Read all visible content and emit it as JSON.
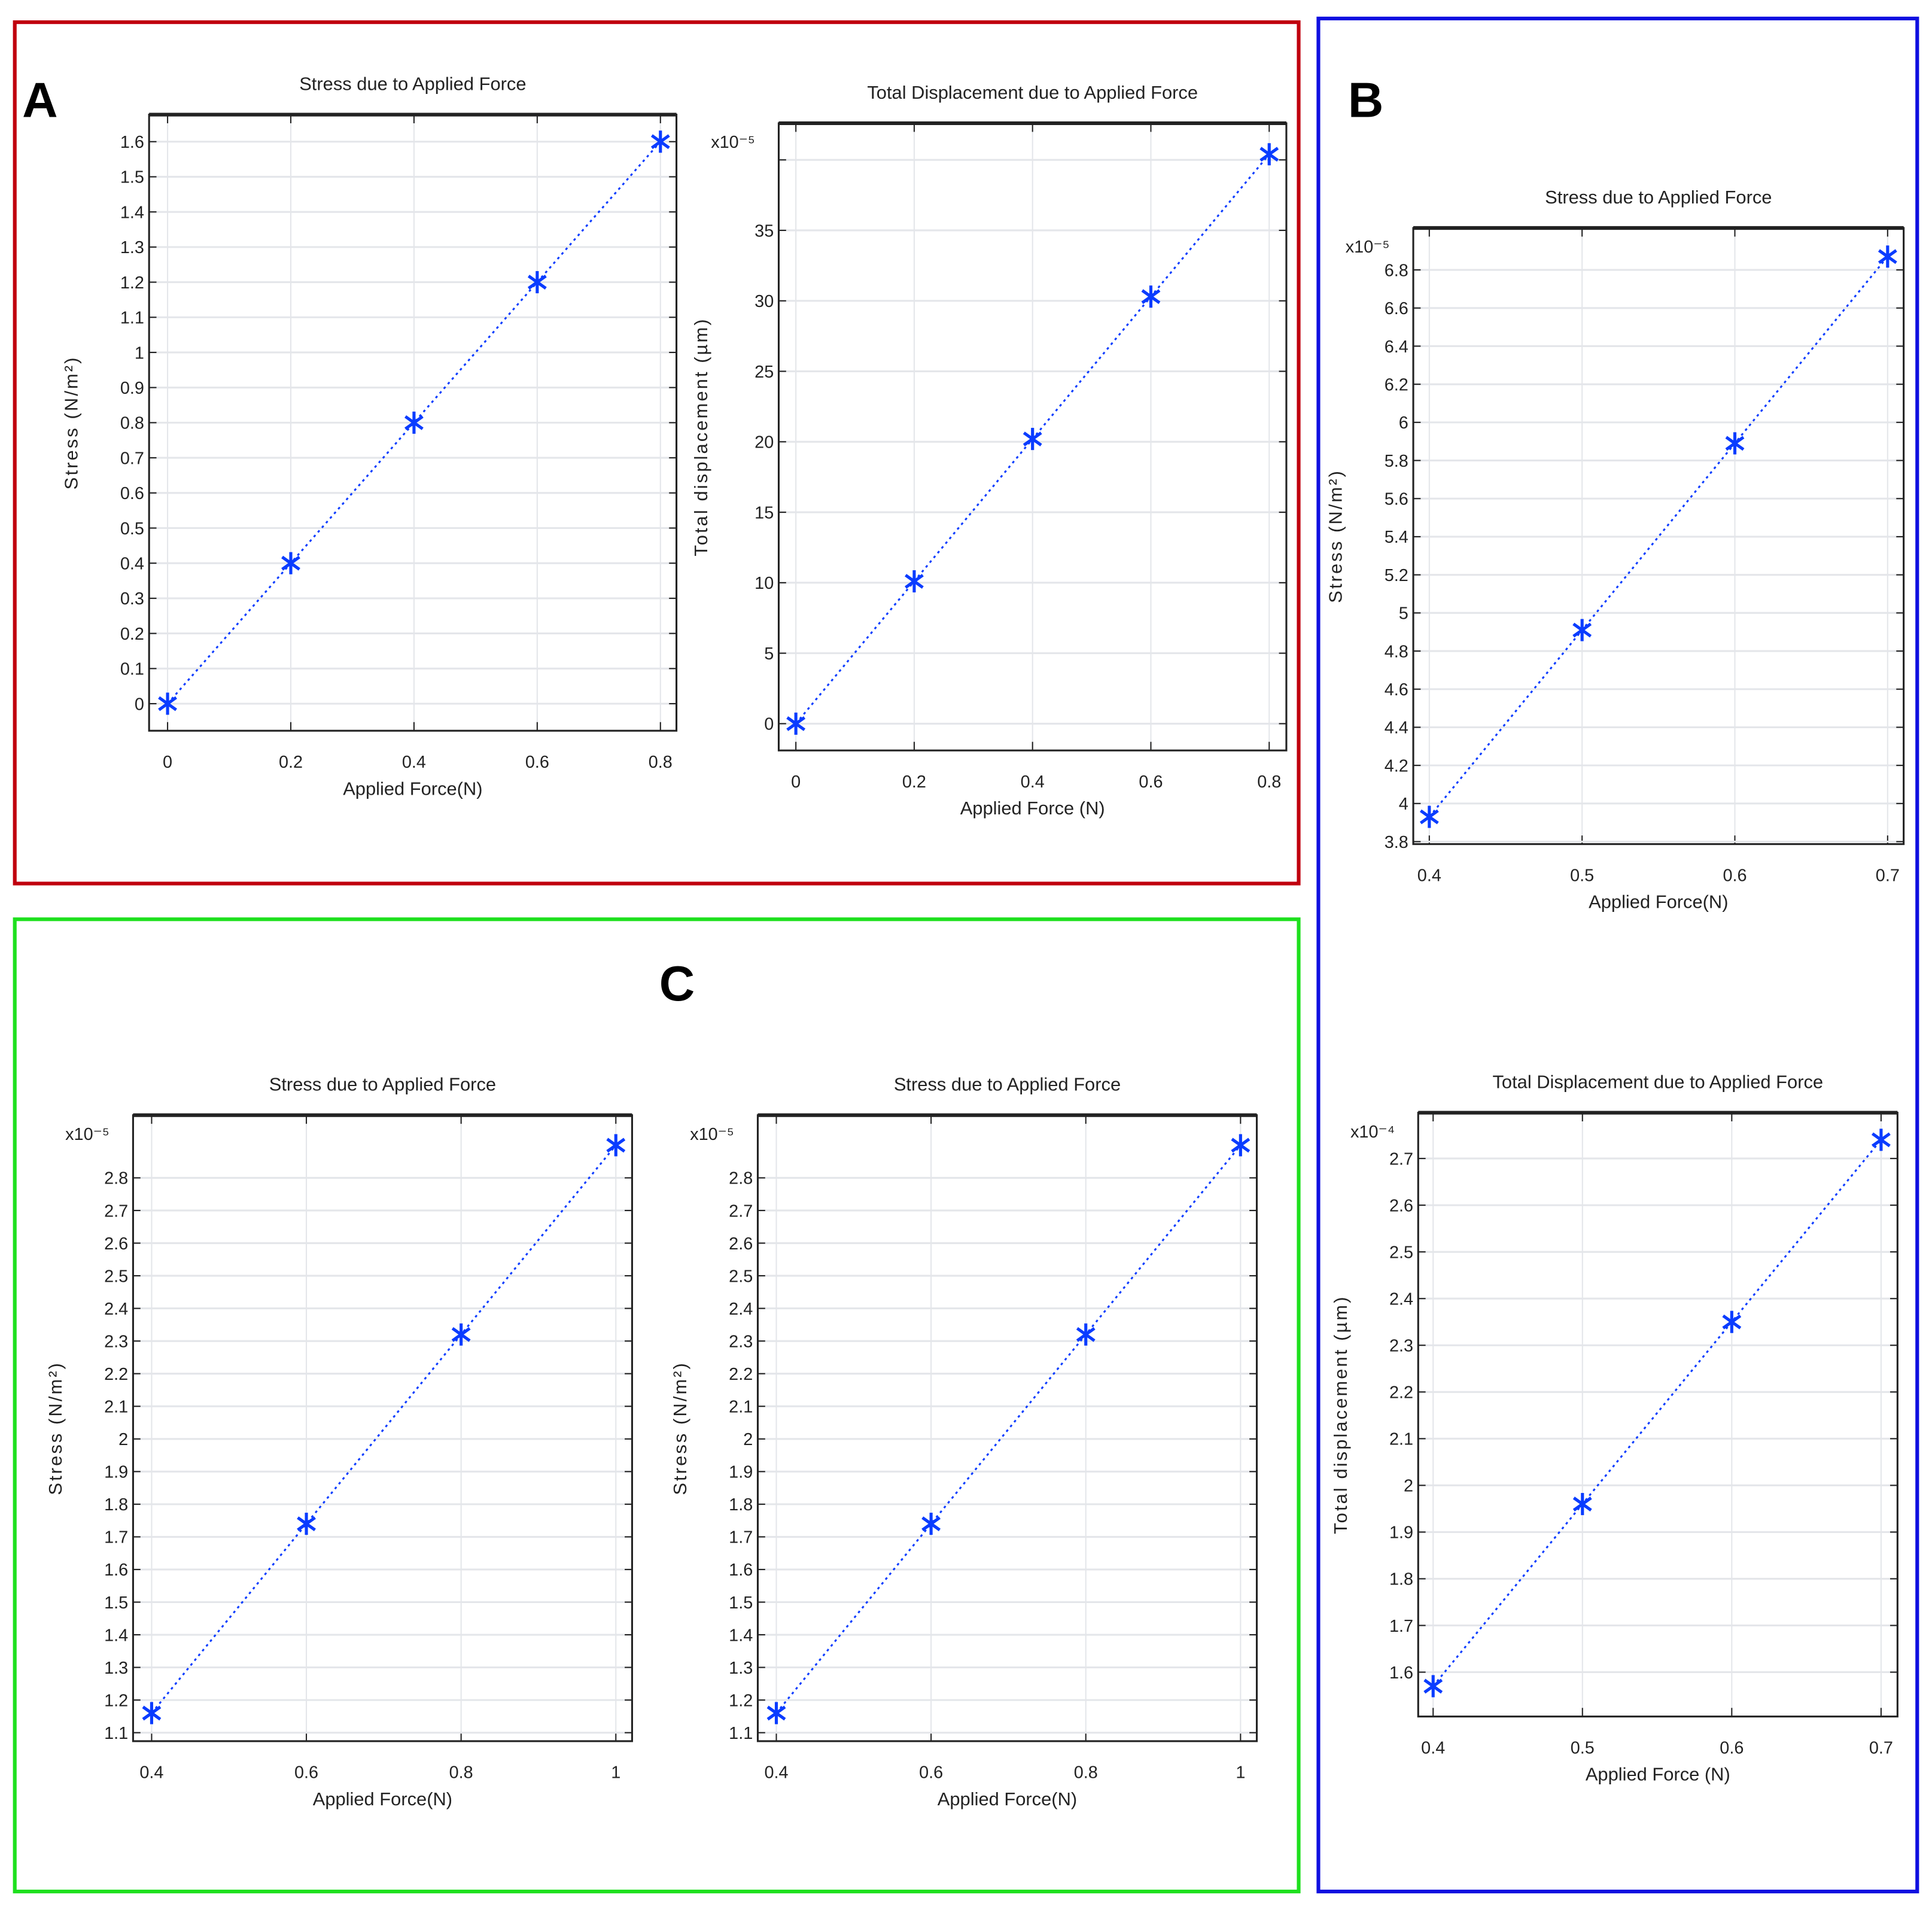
{
  "panels": [
    {
      "letter": "A",
      "color": "#c0000e"
    },
    {
      "letter": "B",
      "color": "#1010e0"
    },
    {
      "letter": "C",
      "color": "#1ee01e"
    }
  ],
  "colors": {
    "series": "#0a3cff",
    "grid": "#e4e6ea",
    "axis": "#222222"
  },
  "chart_data": [
    {
      "panel": "A",
      "type": "line",
      "marker": "asterisk",
      "linestyle": "dotted",
      "title": "Stress due to Applied Force",
      "xlabel": "Applied Force(N)",
      "ylabel": "Stress (N/m²)",
      "multiplier": "",
      "x": [
        0,
        0.2,
        0.4,
        0.6,
        0.8
      ],
      "y": [
        0,
        0.4,
        0.8,
        1.2,
        1.6
      ],
      "xlim": [
        -0.03,
        0.826
      ],
      "ylim": [
        -0.077,
        1.677
      ],
      "xticks": [
        0,
        0.2,
        0.4,
        0.6,
        0.8
      ],
      "xtick_labels": [
        "0",
        "0.2",
        "0.4",
        "0.6",
        "0.8"
      ],
      "yticks": [
        0,
        0.1,
        0.2,
        0.3,
        0.4,
        0.5,
        0.6,
        0.7,
        0.8,
        0.9,
        1,
        1.1,
        1.2,
        1.3,
        1.4,
        1.5,
        1.6
      ],
      "ytick_labels": [
        "0",
        "0.1",
        "0.2",
        "0.3",
        "0.4",
        "0.5",
        "0.6",
        "0.7",
        "0.8",
        "0.9",
        "1",
        "1.1",
        "1.2",
        "1.3",
        "1.4",
        "1.5",
        "1.6"
      ],
      "grid": true
    },
    {
      "panel": "A",
      "type": "line",
      "marker": "asterisk",
      "linestyle": "dotted",
      "title": "Total Displacement due to Applied Force",
      "xlabel": "Applied Force (N)",
      "ylabel": "Total displacement (µm)",
      "multiplier": "x10⁻⁵",
      "x": [
        0,
        0.2,
        0.4,
        0.6,
        0.8
      ],
      "y": [
        0,
        10.1,
        20.2,
        30.3,
        40.4
      ],
      "xlim": [
        -0.029,
        0.829
      ],
      "ylim": [
        -1.9,
        42.6
      ],
      "xticks": [
        0,
        0.2,
        0.4,
        0.6,
        0.8
      ],
      "xtick_labels": [
        "0",
        "0.2",
        "0.4",
        "0.6",
        "0.8"
      ],
      "yticks": [
        0,
        5,
        10,
        15,
        20,
        25,
        30,
        35,
        40
      ],
      "ytick_labels": [
        "0",
        "5",
        "10",
        "15",
        "20",
        "25",
        "30",
        "35",
        ""
      ],
      "grid": true
    },
    {
      "panel": "B",
      "type": "line",
      "marker": "asterisk",
      "linestyle": "dotted",
      "title": "Stress due to Applied Force",
      "xlabel": "Applied Force(N)",
      "ylabel": "Stress (N/m²)",
      "multiplier": "x10⁻⁵",
      "x": [
        0.4,
        0.5,
        0.6,
        0.7
      ],
      "y": [
        3.93,
        4.91,
        5.89,
        6.87
      ],
      "xlim": [
        0.3895,
        0.7105
      ],
      "ylim": [
        3.787,
        7.02
      ],
      "xticks": [
        0.4,
        0.5,
        0.6,
        0.7
      ],
      "xtick_labels": [
        "0.4",
        "0.5",
        "0.6",
        "0.7"
      ],
      "yticks": [
        3.8,
        4,
        4.2,
        4.4,
        4.6,
        4.8,
        5,
        5.2,
        5.4,
        5.6,
        5.8,
        6,
        6.2,
        6.4,
        6.6,
        6.8
      ],
      "ytick_labels": [
        "3.8",
        "4",
        "4.2",
        "4.4",
        "4.6",
        "4.8",
        "5",
        "5.2",
        "5.4",
        "5.6",
        "5.8",
        "6",
        "6.2",
        "6.4",
        "6.6",
        "6.8"
      ],
      "grid": true
    },
    {
      "panel": "B",
      "type": "line",
      "marker": "asterisk",
      "linestyle": "dotted",
      "title": "Total Displacement due to Applied Force",
      "xlabel": "Applied Force (N)",
      "ylabel": "Total displacement (µm)",
      "multiplier": "x10⁻⁴",
      "x": [
        0.4,
        0.5,
        0.6,
        0.7
      ],
      "y": [
        1.57,
        1.96,
        2.35,
        2.74
      ],
      "xlim": [
        0.39,
        0.711
      ],
      "ylim": [
        1.505,
        2.798
      ],
      "xticks": [
        0.4,
        0.5,
        0.6,
        0.7
      ],
      "xtick_labels": [
        "0.4",
        "0.5",
        "0.6",
        "0.7"
      ],
      "yticks": [
        1.6,
        1.7,
        1.8,
        1.9,
        2,
        2.1,
        2.2,
        2.3,
        2.4,
        2.5,
        2.6,
        2.7
      ],
      "ytick_labels": [
        "1.6",
        "1.7",
        "1.8",
        "1.9",
        "2",
        "2.1",
        "2.2",
        "2.3",
        "2.4",
        "2.5",
        "2.6",
        "2.7"
      ],
      "grid": true
    },
    {
      "panel": "C",
      "type": "line",
      "marker": "asterisk",
      "linestyle": "dotted",
      "title": "Stress due to Applied Force",
      "xlabel": "Applied Force(N)",
      "ylabel": "Stress (N/m²)",
      "multiplier": "x10⁻⁵",
      "x": [
        0.4,
        0.6,
        0.8,
        1
      ],
      "y": [
        1.16,
        1.74,
        2.32,
        2.9
      ],
      "xlim": [
        0.376,
        1.021
      ],
      "ylim": [
        1.074,
        2.992
      ],
      "xticks": [
        0.4,
        0.6,
        0.8,
        1
      ],
      "xtick_labels": [
        "0.4",
        "0.6",
        "0.8",
        "1"
      ],
      "yticks": [
        1.1,
        1.2,
        1.3,
        1.4,
        1.5,
        1.6,
        1.7,
        1.8,
        1.9,
        2,
        2.1,
        2.2,
        2.3,
        2.4,
        2.5,
        2.6,
        2.7,
        2.8
      ],
      "ytick_labels": [
        "1.1",
        "1.2",
        "1.3",
        "1.4",
        "1.5",
        "1.6",
        "1.7",
        "1.8",
        "1.9",
        "2",
        "2.1",
        "2.2",
        "2.3",
        "2.4",
        "2.5",
        "2.6",
        "2.7",
        "2.8"
      ],
      "grid": true
    },
    {
      "panel": "C",
      "type": "line",
      "marker": "asterisk",
      "linestyle": "dotted",
      "title": "Stress due to Applied Force",
      "xlabel": "Applied Force(N)",
      "ylabel": "Stress (N/m²)",
      "multiplier": "x10⁻⁵",
      "x": [
        0.4,
        0.6,
        0.8,
        1
      ],
      "y": [
        1.16,
        1.74,
        2.32,
        2.9
      ],
      "xlim": [
        0.376,
        1.021
      ],
      "ylim": [
        1.074,
        2.992
      ],
      "xticks": [
        0.4,
        0.6,
        0.8,
        1
      ],
      "xtick_labels": [
        "0.4",
        "0.6",
        "0.8",
        "1"
      ],
      "yticks": [
        1.1,
        1.2,
        1.3,
        1.4,
        1.5,
        1.6,
        1.7,
        1.8,
        1.9,
        2,
        2.1,
        2.2,
        2.3,
        2.4,
        2.5,
        2.6,
        2.7,
        2.8
      ],
      "ytick_labels": [
        "1.1",
        "1.2",
        "1.3",
        "1.4",
        "1.5",
        "1.6",
        "1.7",
        "1.8",
        "1.9",
        "2",
        "2.1",
        "2.2",
        "2.3",
        "2.4",
        "2.5",
        "2.6",
        "2.7",
        "2.8"
      ],
      "grid": true
    }
  ]
}
